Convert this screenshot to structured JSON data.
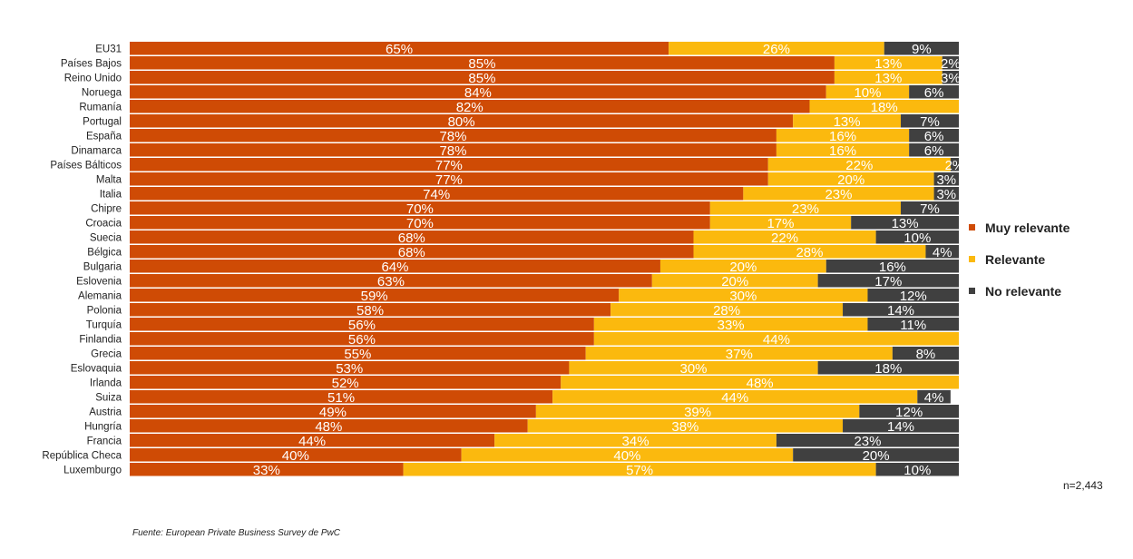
{
  "chart_data": {
    "type": "bar",
    "orientation": "horizontal",
    "stacked": true,
    "categories": [
      "EU31",
      "Países Bajos",
      "Reino Unido",
      "Noruega",
      "Rumanía",
      "Portugal",
      "España",
      "Dinamarca",
      "Países Bálticos",
      "Malta",
      "Italia",
      "Chipre",
      "Croacia",
      "Suecia",
      "Bélgica",
      "Bulgaria",
      "Eslovenia",
      "Alemania",
      "Polonia",
      "Turquía",
      "Finlandia",
      "Grecia",
      "Eslovaquia",
      "Irlanda",
      "Suiza",
      "Austria",
      "Hungría",
      "Francia",
      "República Checa",
      "Luxemburgo"
    ],
    "series": [
      {
        "name": "Muy relevante",
        "color": "#cf4b05",
        "values": [
          65,
          85,
          85,
          84,
          82,
          80,
          78,
          78,
          77,
          77,
          74,
          70,
          70,
          68,
          68,
          64,
          63,
          59,
          58,
          56,
          56,
          55,
          53,
          52,
          51,
          49,
          48,
          44,
          40,
          33
        ]
      },
      {
        "name": "Relevante",
        "color": "#fbb90e",
        "values": [
          26,
          13,
          13,
          10,
          18,
          13,
          16,
          16,
          22,
          20,
          23,
          23,
          17,
          22,
          28,
          20,
          20,
          30,
          28,
          33,
          44,
          37,
          30,
          48,
          44,
          39,
          38,
          34,
          40,
          57
        ]
      },
      {
        "name": "No relevante",
        "color": "#404040",
        "values": [
          9,
          2,
          3,
          6,
          null,
          7,
          6,
          6,
          2,
          3,
          3,
          7,
          13,
          10,
          4,
          16,
          17,
          12,
          14,
          11,
          null,
          8,
          18,
          null,
          4,
          12,
          14,
          23,
          20,
          10
        ]
      }
    ],
    "value_suffix": "%",
    "grid": false,
    "legend_position": "right"
  },
  "note": "n=2,443",
  "source": "Fuente: European Private Business Survey de PwC"
}
